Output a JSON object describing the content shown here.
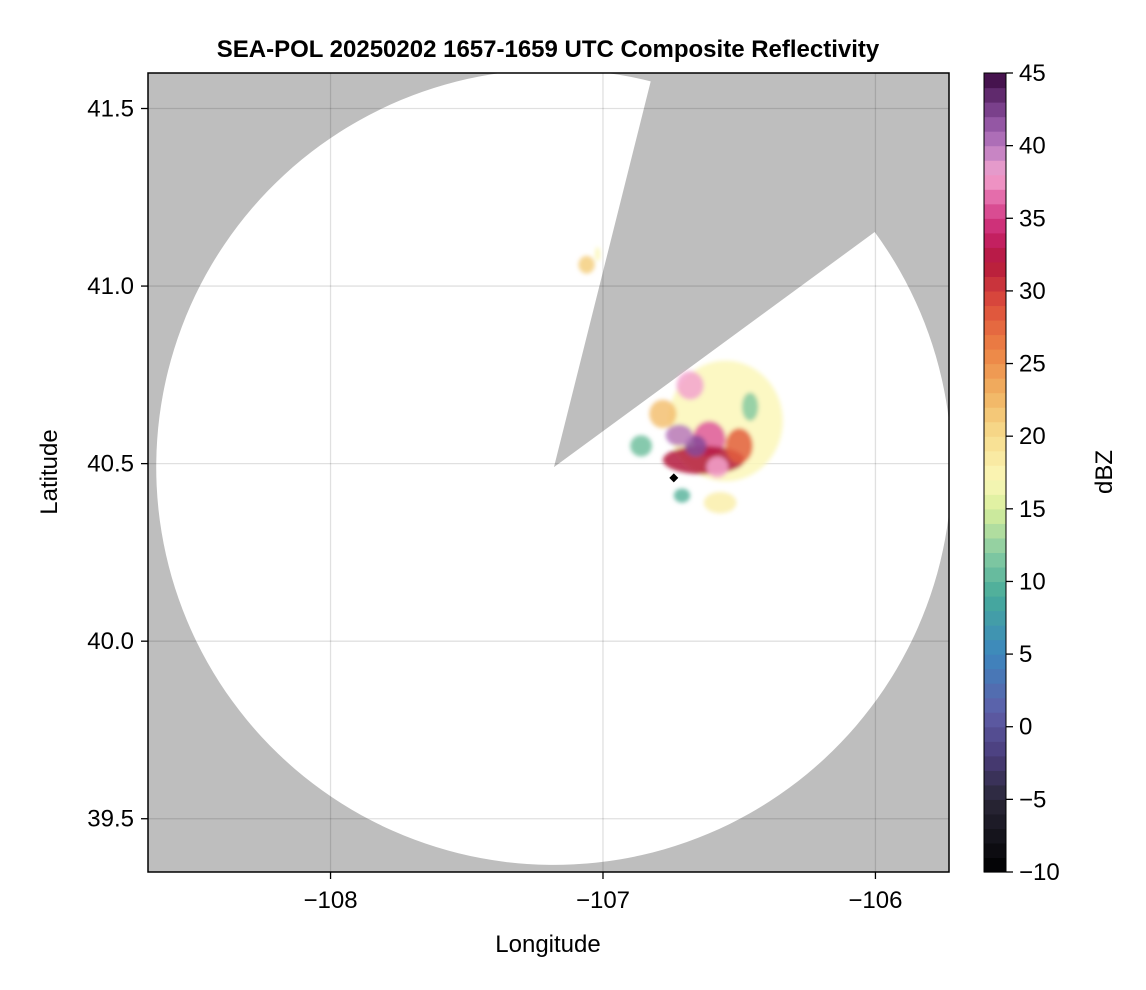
{
  "chart_data": {
    "type": "heatmap",
    "title": "SEA-POL 20250202 1657-1659 UTC Composite Reflectivity",
    "xlabel": "Longitude",
    "ylabel": "Latitude",
    "xlim": [
      -108.67,
      -105.73
    ],
    "ylim": [
      39.35,
      41.6
    ],
    "x_ticks": [
      -108,
      -107,
      -106
    ],
    "x_tick_labels": [
      "−108",
      "−107",
      "−106"
    ],
    "y_ticks": [
      39.5,
      40.0,
      40.5,
      41.0,
      41.5
    ],
    "y_tick_labels": [
      "39.5",
      "40.0",
      "40.5",
      "41.0",
      "41.5"
    ],
    "grid": true,
    "no_coverage_color": "#bebebe",
    "radar_site": {
      "lon": -107.18,
      "lat": 40.49,
      "max_range_lat_deg": 1.12
    },
    "blocked_sector": {
      "edge_points": [
        [
          -106.84,
          41.53
        ],
        [
          -106.06,
          41.12
        ]
      ]
    },
    "marker": {
      "lon": -106.74,
      "lat": 40.46,
      "shape": "diamond",
      "color": "#000000"
    },
    "echoes": [
      {
        "lon": -106.55,
        "lat": 40.62,
        "r_lon": 0.21,
        "r_lat": 0.17,
        "dbz": 17
      },
      {
        "lon": -106.68,
        "lat": 40.72,
        "r_lon": 0.05,
        "r_lat": 0.04,
        "dbz": 38
      },
      {
        "lon": -106.61,
        "lat": 40.57,
        "r_lon": 0.06,
        "r_lat": 0.05,
        "dbz": 36
      },
      {
        "lon": -106.63,
        "lat": 40.51,
        "r_lon": 0.15,
        "r_lat": 0.04,
        "dbz": 32
      },
      {
        "lon": -106.66,
        "lat": 40.55,
        "r_lon": 0.04,
        "r_lat": 0.03,
        "dbz": 42
      },
      {
        "lon": -106.72,
        "lat": 40.58,
        "r_lon": 0.05,
        "r_lat": 0.03,
        "dbz": 40
      },
      {
        "lon": -106.58,
        "lat": 40.49,
        "r_lon": 0.04,
        "r_lat": 0.03,
        "dbz": 38
      },
      {
        "lon": -106.5,
        "lat": 40.55,
        "r_lon": 0.05,
        "r_lat": 0.05,
        "dbz": 28
      },
      {
        "lon": -106.78,
        "lat": 40.64,
        "r_lon": 0.05,
        "r_lat": 0.04,
        "dbz": 22
      },
      {
        "lon": -106.86,
        "lat": 40.55,
        "r_lon": 0.04,
        "r_lat": 0.03,
        "dbz": 11
      },
      {
        "lon": -106.46,
        "lat": 40.66,
        "r_lon": 0.03,
        "r_lat": 0.04,
        "dbz": 12
      },
      {
        "lon": -106.57,
        "lat": 40.39,
        "r_lon": 0.06,
        "r_lat": 0.03,
        "dbz": 18
      },
      {
        "lon": -106.71,
        "lat": 40.41,
        "r_lon": 0.03,
        "r_lat": 0.02,
        "dbz": 10
      },
      {
        "lon": -107.06,
        "lat": 41.06,
        "r_lon": 0.03,
        "r_lat": 0.025,
        "dbz": 21
      },
      {
        "lon": -107.02,
        "lat": 41.09,
        "r_lon": 0.01,
        "r_lat": 0.02,
        "dbz": 17
      }
    ],
    "colorbar": {
      "label": "dBZ",
      "min": -10,
      "max": 45,
      "ticks": [
        -10,
        -5,
        0,
        5,
        10,
        15,
        20,
        25,
        30,
        35,
        40,
        45
      ],
      "tick_labels": [
        "−10",
        "−5",
        "0",
        "5",
        "10",
        "15",
        "20",
        "25",
        "30",
        "35",
        "40",
        "45"
      ],
      "colormap_stops": [
        {
          "value": -10,
          "color": "#000000"
        },
        {
          "value": -5,
          "color": "#2a2738"
        },
        {
          "value": -2,
          "color": "#4a3c7a"
        },
        {
          "value": 1,
          "color": "#5e5ea8"
        },
        {
          "value": 5,
          "color": "#3d86be"
        },
        {
          "value": 9,
          "color": "#46aa9a"
        },
        {
          "value": 12,
          "color": "#87cba2"
        },
        {
          "value": 15,
          "color": "#d8ef9c"
        },
        {
          "value": 17,
          "color": "#fbf7b8"
        },
        {
          "value": 20,
          "color": "#f7dd8e"
        },
        {
          "value": 23,
          "color": "#f1b262"
        },
        {
          "value": 26,
          "color": "#ec8244"
        },
        {
          "value": 29,
          "color": "#de4f3c"
        },
        {
          "value": 32,
          "color": "#b4183c"
        },
        {
          "value": 34,
          "color": "#c8236c"
        },
        {
          "value": 36,
          "color": "#df5a9f"
        },
        {
          "value": 38,
          "color": "#f3a5cf"
        },
        {
          "value": 40,
          "color": "#b97ac0"
        },
        {
          "value": 42,
          "color": "#874b9a"
        },
        {
          "value": 45,
          "color": "#39083f"
        }
      ]
    }
  }
}
